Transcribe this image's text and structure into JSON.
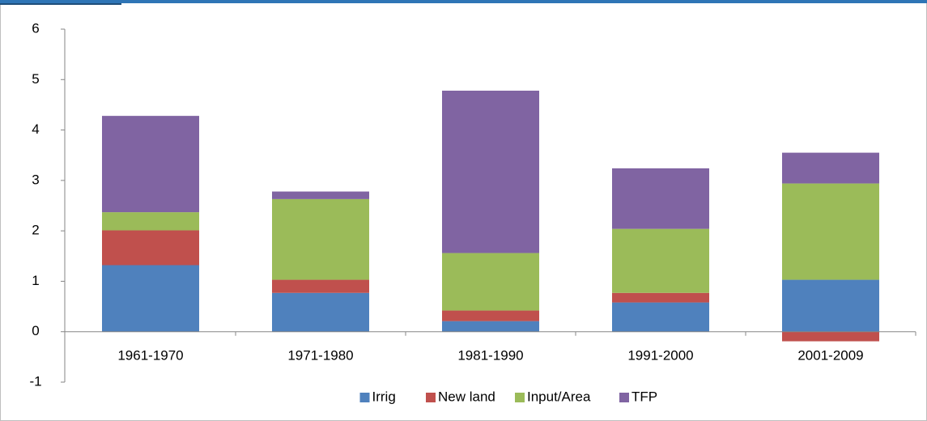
{
  "chart_data": {
    "type": "stacked_bar",
    "categories": [
      "1961-1970",
      "1971-1980",
      "1981-1990",
      "1991-2000",
      "2001-2009"
    ],
    "series": [
      {
        "name": "Irrig",
        "color": "#4f81bd",
        "values": [
          1.32,
          0.77,
          0.21,
          0.58,
          1.03
        ]
      },
      {
        "name": "New land",
        "color": "#c0504d",
        "values": [
          0.69,
          0.26,
          0.21,
          0.19,
          -0.19
        ]
      },
      {
        "name": "Input/Area",
        "color": "#9bbb59",
        "values": [
          0.36,
          1.6,
          1.14,
          1.27,
          1.91
        ]
      },
      {
        "name": "TFP",
        "color": "#8064a2",
        "values": [
          1.91,
          0.15,
          3.22,
          1.2,
          0.61
        ]
      }
    ],
    "ylim": [
      -1,
      6
    ],
    "yticks": [
      -1,
      0,
      1,
      2,
      3,
      4,
      5,
      6
    ],
    "legend": "bottom"
  }
}
